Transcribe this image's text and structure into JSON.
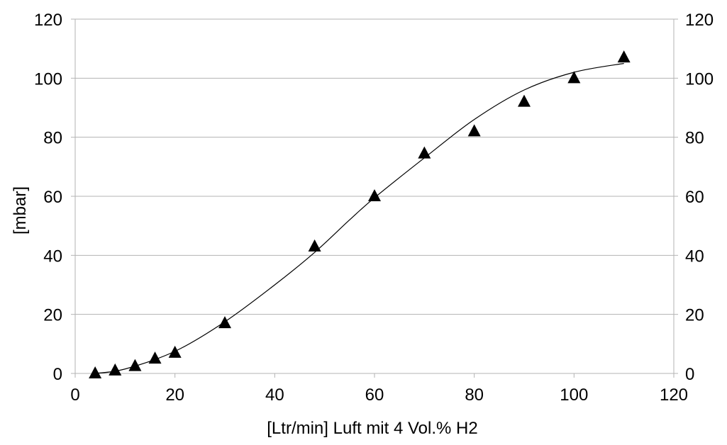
{
  "chart_data": {
    "type": "scatter",
    "title": "",
    "xlabel": "[Ltr/min] Luft mit 4 Vol.% H2",
    "ylabel": "[mbar]",
    "xlim": [
      0,
      120
    ],
    "ylim": [
      0,
      120
    ],
    "x_ticks": [
      0,
      20,
      40,
      60,
      80,
      100,
      120
    ],
    "y_ticks": [
      0,
      20,
      40,
      60,
      80,
      100,
      120
    ],
    "y2_ticks": [
      0,
      20,
      40,
      60,
      80,
      100,
      120
    ],
    "grid": "horizontal",
    "legend": "none",
    "series": [
      {
        "marker": "triangle",
        "color": "#000000",
        "x": [
          4,
          8,
          12,
          16,
          20,
          30,
          48,
          60,
          70,
          80,
          90,
          100,
          110
        ],
        "y": [
          0,
          1,
          2.5,
          5,
          7,
          17,
          43,
          60,
          74.5,
          82,
          92,
          100,
          107
        ]
      },
      {
        "type": "line",
        "color": "#000000",
        "x": [
          4,
          10,
          20,
          30,
          40,
          48,
          55,
          60,
          70,
          80,
          90,
          100,
          110
        ],
        "y": [
          0,
          1.5,
          7.5,
          17.5,
          30,
          41,
          52,
          59.5,
          73,
          86,
          96,
          102,
          105
        ]
      }
    ]
  }
}
